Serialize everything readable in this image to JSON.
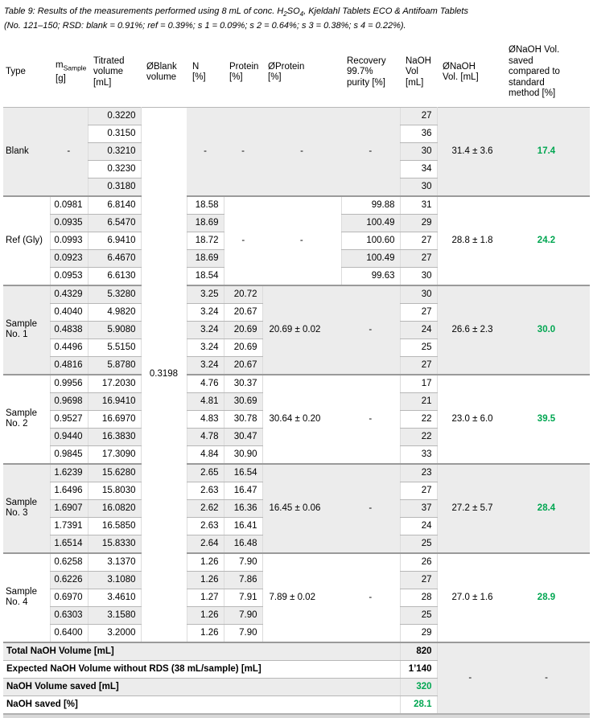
{
  "caption": {
    "line1_pre": "Table 9: Results of the measurements performed using 8 mL of conc. H",
    "h2so4_sub1": "2",
    "line1_mid": "SO",
    "h2so4_sub2": "4",
    "line1_post": ", Kjeldahl Tablets ECO & Antifoam Tablets",
    "line2": "(No. 121–150; RSD: blank = 0.91%; ref = 0.39%; s 1 = 0.09%; s 2 = 0.64%; s 3 = 0.38%; s 4 = 0.22%)."
  },
  "colors": {
    "accent_green": "#00a651",
    "band_gray": "#ececec",
    "group_line": "#9a9a9a"
  },
  "table": {
    "headers": {
      "type": "Type",
      "m_prefix": "m",
      "m_sub": "Sample",
      "m_unit": "[g]",
      "titrated": "Titrated\nvolume\n[mL]",
      "blank": "ØBlank\nvolume",
      "n": "N\n[%]",
      "protein": "Protein\n[%]",
      "avg_protein": "ØProtein\n[%]",
      "recovery": "Recovery\n99.7%\npurity [%]",
      "naoh": "NaOH\nVol\n[mL]",
      "avg_naoh": "ØNaOH\nVol. [mL]",
      "saved": "ØNaOH Vol.\nsaved\ncompared to\nstandard\nmethod [%]"
    },
    "blank_volume": "0.3198",
    "groups": [
      {
        "type": "Blank",
        "m": null,
        "m_merged": "-",
        "titrated": [
          "0.3220",
          "0.3150",
          "0.3210",
          "0.3230",
          "0.3180"
        ],
        "n": null,
        "n_merged": "-",
        "protein": null,
        "protein_merged": "-",
        "avg_protein": "-",
        "recovery": null,
        "recovery_merged": "-",
        "naoh": [
          "27",
          "36",
          "30",
          "34",
          "30"
        ],
        "avg_naoh": "31.4 ± 3.6",
        "saved": "17.4"
      },
      {
        "type": "Ref (Gly)",
        "m": [
          "0.0981",
          "0.0935",
          "0.0993",
          "0.0923",
          "0.0953"
        ],
        "titrated": [
          "6.8140",
          "6.5470",
          "6.9410",
          "6.4670",
          "6.6130"
        ],
        "n": [
          "18.58",
          "18.69",
          "18.72",
          "18.69",
          "18.54"
        ],
        "protein": null,
        "protein_merged": "-",
        "avg_protein": "-",
        "recovery": [
          "99.88",
          "100.49",
          "100.60",
          "100.49",
          "99.63"
        ],
        "naoh": [
          "31",
          "29",
          "27",
          "27",
          "30"
        ],
        "avg_naoh": "28.8 ± 1.8",
        "saved": "24.2"
      },
      {
        "type": "Sample No. 1",
        "m": [
          "0.4329",
          "0.4040",
          "0.4838",
          "0.4496",
          "0.4816"
        ],
        "titrated": [
          "5.3280",
          "4.9820",
          "5.9080",
          "5.5150",
          "5.8780"
        ],
        "n": [
          "3.25",
          "3.24",
          "3.24",
          "3.24",
          "3.24"
        ],
        "protein": [
          "20.72",
          "20.67",
          "20.69",
          "20.69",
          "20.67"
        ],
        "avg_protein": "20.69 ± 0.02",
        "recovery": null,
        "recovery_merged": "-",
        "naoh": [
          "30",
          "27",
          "24",
          "25",
          "27"
        ],
        "avg_naoh": "26.6 ± 2.3",
        "saved": "30.0"
      },
      {
        "type": "Sample No. 2",
        "m": [
          "0.9956",
          "0.9698",
          "0.9527",
          "0.9440",
          "0.9845"
        ],
        "titrated": [
          "17.2030",
          "16.9410",
          "16.6970",
          "16.3830",
          "17.3090"
        ],
        "n": [
          "4.76",
          "4.81",
          "4.83",
          "4.78",
          "4.84"
        ],
        "protein": [
          "30.37",
          "30.69",
          "30.78",
          "30.47",
          "30.90"
        ],
        "avg_protein": "30.64 ± 0.20",
        "recovery": null,
        "recovery_merged": "-",
        "naoh": [
          "17",
          "21",
          "22",
          "22",
          "33"
        ],
        "avg_naoh": "23.0 ± 6.0",
        "saved": "39.5"
      },
      {
        "type": "Sample No. 3",
        "m": [
          "1.6239",
          "1.6496",
          "1.6907",
          "1.7391",
          "1.6514"
        ],
        "titrated": [
          "15.6280",
          "15.8030",
          "16.0820",
          "16.5850",
          "15.8330"
        ],
        "n": [
          "2.65",
          "2.63",
          "2.62",
          "2.63",
          "2.64"
        ],
        "protein": [
          "16.54",
          "16.47",
          "16.36",
          "16.41",
          "16.48"
        ],
        "avg_protein": "16.45 ± 0.06",
        "recovery": null,
        "recovery_merged": "-",
        "naoh": [
          "23",
          "27",
          "37",
          "24",
          "25"
        ],
        "avg_naoh": "27.2 ± 5.7",
        "saved": "28.4"
      },
      {
        "type": "Sample No. 4",
        "m": [
          "0.6258",
          "0.6226",
          "0.6970",
          "0.6303",
          "0.6400"
        ],
        "titrated": [
          "3.1370",
          "3.1080",
          "3.4610",
          "3.1580",
          "3.2000"
        ],
        "n": [
          "1.26",
          "1.26",
          "1.27",
          "1.26",
          "1.26"
        ],
        "protein": [
          "7.90",
          "7.86",
          "7.91",
          "7.90",
          "7.90"
        ],
        "avg_protein": "7.89 ± 0.02",
        "recovery": null,
        "recovery_merged": "-",
        "naoh": [
          "26",
          "27",
          "28",
          "25",
          "29"
        ],
        "avg_naoh": "27.0 ± 1.6",
        "saved": "28.9"
      }
    ],
    "footer": {
      "rows": [
        {
          "label": "Total NaOH Volume [mL]",
          "value": "820",
          "green": false
        },
        {
          "label": "Expected NaOH Volume without RDS (38 mL/sample) [mL]",
          "value": "1’140",
          "green": false
        },
        {
          "label": "NaOH Volume saved [mL]",
          "value": "320",
          "green": true
        },
        {
          "label": "NaOH saved [%]",
          "value": "28.1",
          "green": true
        }
      ],
      "avg_naoh_dash": "-",
      "saved_dash": "-"
    }
  }
}
